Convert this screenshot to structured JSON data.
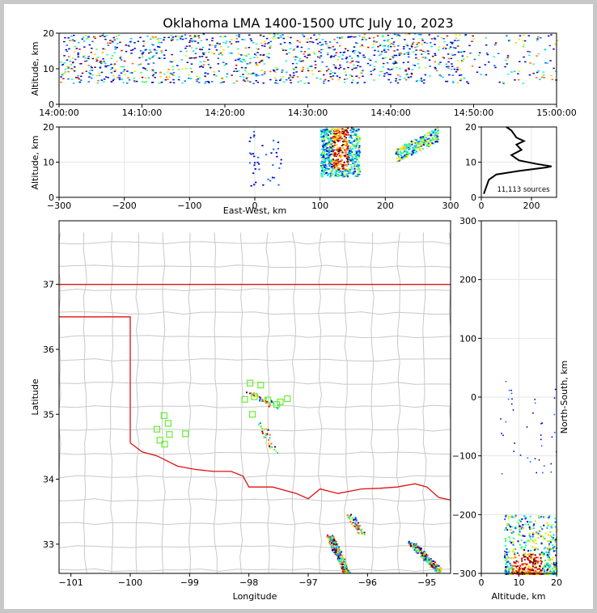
{
  "chart_data": [
    {
      "type": "heatmap",
      "id": "time-altitude",
      "title": "Oklahoma LMA 1400-1500 UTC July 10, 2023",
      "xlabel": "",
      "ylabel": "Altitude, km",
      "xticks": [
        "14:00:00",
        "14:10:00",
        "14:20:00",
        "14:30:00",
        "14:40:00",
        "14:50:00",
        "15:00:00"
      ],
      "yticks": [
        0,
        10,
        20
      ],
      "ylim": [
        0,
        20
      ],
      "description_bands_km": [
        [
          6,
          20
        ]
      ],
      "grid": false
    },
    {
      "type": "scatter",
      "id": "eastwest-altitude",
      "xlabel": "East-West, km",
      "ylabel": "Altitude, km",
      "xlim": [
        -300,
        300
      ],
      "ylim": [
        0,
        20
      ],
      "xticks": [
        -300,
        -200,
        -100,
        0,
        100,
        200,
        300
      ],
      "yticks": [
        0,
        10,
        20
      ],
      "clusters": [
        {
          "x": [
            100,
            160
          ],
          "y": [
            6,
            20
          ]
        },
        {
          "x": [
            215,
            280
          ],
          "y": [
            10,
            20
          ]
        },
        {
          "x": [
            -10,
            40
          ],
          "y": [
            3,
            19
          ]
        }
      ],
      "grid": true
    },
    {
      "type": "line",
      "id": "altitude-histogram",
      "xlim": [
        0,
        300
      ],
      "ylim": [
        0,
        20
      ],
      "xticks": [
        0,
        200
      ],
      "yticks": [
        0,
        10,
        20
      ],
      "annotation": "11,113 sources",
      "profile": [
        {
          "x": 10,
          "y": 1
        },
        {
          "x": 20,
          "y": 3
        },
        {
          "x": 30,
          "y": 5
        },
        {
          "x": 60,
          "y": 6.5
        },
        {
          "x": 150,
          "y": 7.5
        },
        {
          "x": 260,
          "y": 8.5
        },
        {
          "x": 280,
          "y": 8.8
        },
        {
          "x": 220,
          "y": 9.5
        },
        {
          "x": 150,
          "y": 10.5
        },
        {
          "x": 120,
          "y": 12
        },
        {
          "x": 160,
          "y": 13.5
        },
        {
          "x": 140,
          "y": 15
        },
        {
          "x": 170,
          "y": 16
        },
        {
          "x": 140,
          "y": 17
        },
        {
          "x": 130,
          "y": 18
        },
        {
          "x": 120,
          "y": 19
        },
        {
          "x": 100,
          "y": 20
        }
      ]
    },
    {
      "type": "scatter",
      "id": "map",
      "xlabel": "Longitude",
      "ylabel": "Latitude",
      "xticks": [
        -101,
        -100,
        -99,
        -98,
        -97,
        -96,
        -95
      ],
      "yticks": [
        33,
        34,
        35,
        36,
        37
      ],
      "xlim": [
        -101.2,
        -94.6
      ],
      "ylim": [
        32.55,
        37.98
      ],
      "stations": [
        {
          "lon": -97.98,
          "lat": 35.48
        },
        {
          "lon": -97.8,
          "lat": 35.45
        },
        {
          "lon": -97.91,
          "lat": 35.27
        },
        {
          "lon": -98.07,
          "lat": 35.23
        },
        {
          "lon": -97.68,
          "lat": 35.22
        },
        {
          "lon": -97.53,
          "lat": 35.15
        },
        {
          "lon": -97.47,
          "lat": 35.19
        },
        {
          "lon": -97.35,
          "lat": 35.24
        },
        {
          "lon": -97.94,
          "lat": 35.0
        },
        {
          "lon": -99.43,
          "lat": 34.98
        },
        {
          "lon": -99.36,
          "lat": 34.86
        },
        {
          "lon": -99.55,
          "lat": 34.77
        },
        {
          "lon": -99.34,
          "lat": 34.69
        },
        {
          "lon": -99.07,
          "lat": 34.7
        },
        {
          "lon": -99.5,
          "lat": 34.6
        },
        {
          "lon": -99.42,
          "lat": 34.54
        }
      ],
      "colors": {
        "station": "#66ee33",
        "state_line": "#dd1111",
        "county": "#c8c8c8"
      }
    },
    {
      "type": "scatter",
      "id": "altitude-northsouth",
      "xlabel": "Altitude, km",
      "ylabel": "North-South, km",
      "xlim": [
        0,
        20
      ],
      "ylim": [
        -300,
        300
      ],
      "xticks": [
        0,
        10,
        20
      ],
      "yticks": [
        -300,
        -200,
        -100,
        0,
        100,
        200,
        300
      ],
      "grid": true
    }
  ]
}
